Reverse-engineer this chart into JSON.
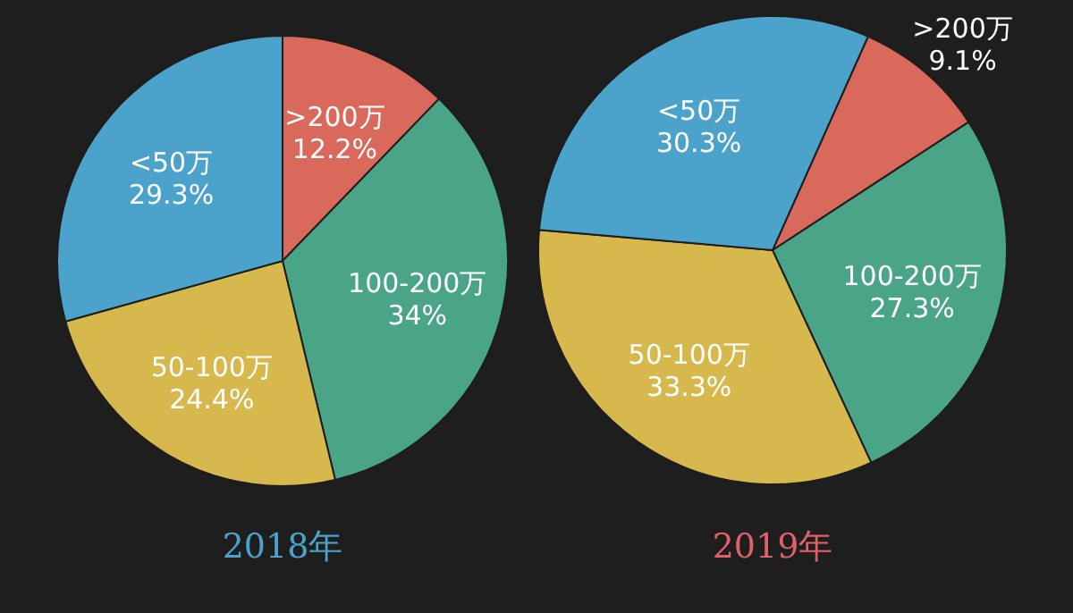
{
  "chart_data": [
    {
      "type": "pie",
      "title": "2018年",
      "categories": [
        ">200万",
        "100-200万",
        "50-100万",
        "<50万"
      ],
      "values": [
        12.2,
        34,
        24.4,
        29.3
      ],
      "value_labels": [
        "12.2%",
        "34%",
        "24.4%",
        "29.3%"
      ],
      "colors": [
        "#d9695a",
        "#4aa488",
        "#d6b84c",
        "#4ba3cc"
      ]
    },
    {
      "type": "pie",
      "title": "2019年",
      "categories": [
        ">200万",
        "100-200万",
        "50-100万",
        "<50万"
      ],
      "values": [
        9.1,
        27.3,
        33.3,
        30.3
      ],
      "value_labels": [
        "9.1%",
        "27.3%",
        "33.3%",
        "30.3%"
      ],
      "colors": [
        "#d9695a",
        "#4aa488",
        "#d6b84c",
        "#4ba3cc"
      ]
    }
  ]
}
